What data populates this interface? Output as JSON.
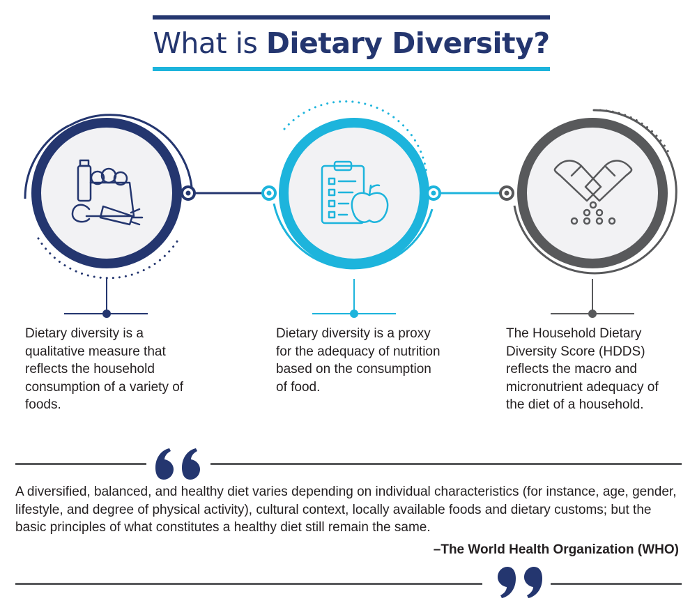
{
  "title": {
    "prefix": "What is ",
    "emphasis": "Dietary Diversity?"
  },
  "colors": {
    "navy": "#24366f",
    "cyan": "#1db4dc",
    "gray": "#58595b",
    "icon_bg": "#f2f2f4"
  },
  "icons": [
    "groceries-icon",
    "clipboard-apple-icon",
    "capsule-pills-icon"
  ],
  "descriptions": [
    "Dietary diversity is a qualitative measure that reflects the household consumption of a variety of foods.",
    "Dietary diversity is a proxy for the adequacy of nutrition based on the consumption of food.",
    "The Household Dietary Diversity Score (HDDS) reflects the macro and micronutrient adequacy of the diet of a household."
  ],
  "quote": {
    "text": "A diversified, balanced, and healthy diet varies depending on individual characteristics (for instance, age, gender, lifestyle, and degree of physical activity), cultural context, locally available foods and dietary customs; but the basic principles of what constitutes a healthy diet still remain the same.",
    "source": "–The World Health Organization (WHO)"
  }
}
